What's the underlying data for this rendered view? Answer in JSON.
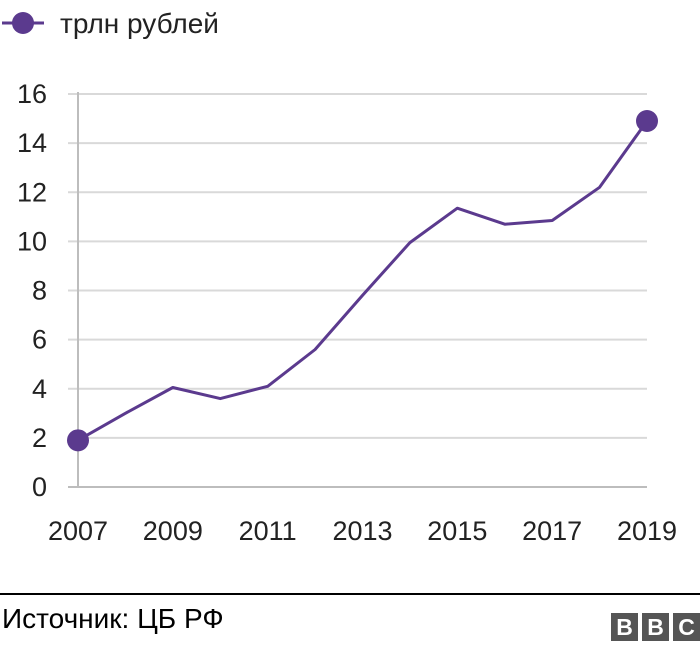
{
  "chart_data": {
    "type": "line",
    "title": "",
    "xlabel": "",
    "ylabel": "",
    "legend": {
      "placement": "top-left"
    },
    "x": [
      2007,
      2008,
      2009,
      2010,
      2011,
      2012,
      2013,
      2014,
      2015,
      2016,
      2017,
      2018,
      2019
    ],
    "series": [
      {
        "name": "трлн рублей",
        "color": "#5b3a8e",
        "values": [
          1.9,
          3.0,
          4.05,
          3.6,
          4.1,
          5.6,
          7.8,
          9.95,
          11.35,
          10.7,
          10.85,
          12.2,
          14.9
        ],
        "markers_at": [
          2007,
          2019
        ]
      }
    ],
    "ylim": [
      0,
      16
    ],
    "yticks": [
      "0",
      "2",
      "4",
      "6",
      "8",
      "10",
      "12",
      "14",
      "16"
    ],
    "xticks": [
      "2007",
      "2009",
      "2011",
      "2013",
      "2015",
      "2017",
      "2019"
    ],
    "grid": "horizontal"
  },
  "footer": {
    "source": "Источник: ЦБ РФ",
    "logo_letters": [
      "B",
      "B",
      "C"
    ]
  }
}
